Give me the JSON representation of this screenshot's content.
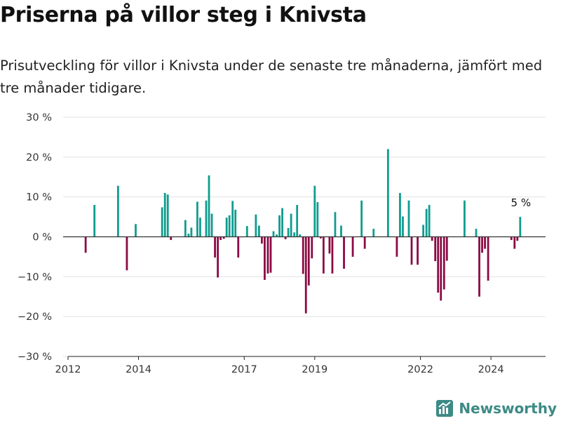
{
  "title": "Priserna på villor steg i Knivsta",
  "subtitle": "Prisutveckling för villor i Knivsta under de senaste tre månaderna, jämfört med tre månader tidigare.",
  "brand": {
    "name": "Newsworthy",
    "icon": "newsworthy-logo-icon",
    "color": "#3d8a86"
  },
  "colors": {
    "positive": "#0f9c8f",
    "negative": "#8c0a45",
    "grid": "#e2e2e2",
    "zero": "#333333"
  },
  "chart_data": {
    "type": "bar",
    "title": "",
    "xlabel": "",
    "ylabel": "",
    "ylim": [
      -30,
      30
    ],
    "xlim": [
      2012.0,
      2025.55
    ],
    "grid": true,
    "y_ticks": [
      30,
      20,
      10,
      0,
      -10,
      -20,
      -30
    ],
    "y_tick_labels": [
      "30 %",
      "20 %",
      "10 %",
      "0 %",
      "−10 %",
      "−20 %",
      "−30 %"
    ],
    "x_ticks": [
      2012,
      2014,
      2017,
      2019,
      2022,
      2024
    ],
    "x_tick_labels": [
      "2012",
      "2014",
      "2017",
      "2019",
      "2022",
      "2024"
    ],
    "annotation": {
      "text": "5 %",
      "x": 2024.83,
      "y": 5
    },
    "x": [
      2012.5,
      2012.75,
      2013.42,
      2013.67,
      2013.92,
      2014.67,
      2014.75,
      2014.83,
      2014.92,
      2015.33,
      2015.42,
      2015.5,
      2015.67,
      2015.75,
      2015.92,
      2016.0,
      2016.08,
      2016.17,
      2016.25,
      2016.33,
      2016.42,
      2016.5,
      2016.58,
      2016.67,
      2016.75,
      2016.83,
      2016.92,
      2017.08,
      2017.33,
      2017.42,
      2017.5,
      2017.58,
      2017.67,
      2017.75,
      2017.83,
      2017.92,
      2018.0,
      2018.08,
      2018.17,
      2018.25,
      2018.33,
      2018.42,
      2018.5,
      2018.58,
      2018.67,
      2018.75,
      2018.83,
      2018.92,
      2019.0,
      2019.08,
      2019.17,
      2019.25,
      2019.42,
      2019.5,
      2019.58,
      2019.75,
      2019.83,
      2020.08,
      2020.33,
      2020.42,
      2020.67,
      2021.08,
      2021.33,
      2021.42,
      2021.5,
      2021.67,
      2021.75,
      2021.92,
      2022.08,
      2022.17,
      2022.25,
      2022.33,
      2022.42,
      2022.5,
      2022.58,
      2022.67,
      2022.75,
      2023.25,
      2023.58,
      2023.67,
      2023.75,
      2023.83,
      2023.92,
      2024.58,
      2024.67,
      2024.75,
      2024.83
    ],
    "values": [
      -4,
      8,
      12.8,
      -8.4,
      3.2,
      7.4,
      11,
      10.6,
      -0.8,
      4.2,
      0.8,
      2.3,
      8.8,
      4.8,
      9.1,
      15.4,
      5.8,
      -5.2,
      -10.2,
      -0.8,
      -0.5,
      4.8,
      5.4,
      9,
      6.8,
      -5.2,
      -0.1,
      2.7,
      5.6,
      2.8,
      -1.7,
      -10.8,
      -9.2,
      -9,
      1.4,
      0.6,
      5.4,
      7.2,
      -0.6,
      2.2,
      5.8,
      1.1,
      8,
      0.6,
      -9.3,
      -19.2,
      -12.2,
      -5.4,
      12.8,
      8.7,
      -0.4,
      -9.2,
      -4.2,
      -9.2,
      6.2,
      2.8,
      -8,
      -5,
      9.1,
      -3,
      2,
      22,
      -5,
      11,
      5.1,
      9.1,
      -7,
      -7,
      3,
      7,
      8,
      -1,
      -6.1,
      -14,
      -16,
      -13.2,
      -6,
      9.1,
      2,
      -15,
      -4,
      -3,
      -11,
      -0.8,
      -3,
      -1,
      5
    ]
  }
}
